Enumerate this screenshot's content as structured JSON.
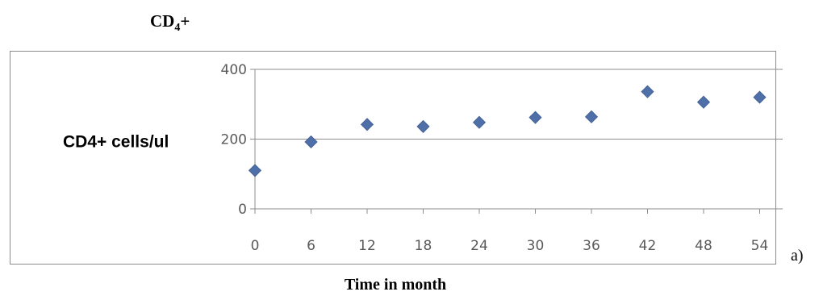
{
  "page": {
    "side_label": "a)",
    "title_main": "CD",
    "title_sub": "4",
    "title_suffix": "+"
  },
  "chart_data": {
    "type": "scatter",
    "title": "CD4+",
    "xlabel": "Time in month",
    "ylabel": "CD4+  cells/ul",
    "x": [
      0,
      6,
      12,
      18,
      24,
      30,
      36,
      42,
      48,
      54
    ],
    "y": [
      110,
      192,
      242,
      236,
      248,
      262,
      264,
      336,
      306,
      320
    ],
    "xticks": [
      "0",
      "6",
      "12",
      "18",
      "24",
      "30",
      "36",
      "42",
      "48",
      "54"
    ],
    "yticks": [
      "0",
      "200",
      "400"
    ],
    "ylim": [
      0,
      400
    ],
    "grid": true,
    "legend": "none",
    "marker": "diamond",
    "marker_color": "#4f6fa8"
  }
}
